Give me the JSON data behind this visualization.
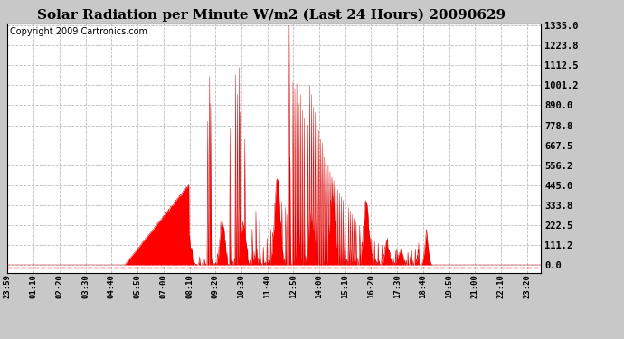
{
  "title": "Solar Radiation per Minute W/m2 (Last 24 Hours) 20090629",
  "copyright": "Copyright 2009 Cartronics.com",
  "yticks": [
    0.0,
    111.2,
    222.5,
    333.8,
    445.0,
    556.2,
    667.5,
    778.8,
    890.0,
    1001.2,
    1112.5,
    1223.8,
    1335.0
  ],
  "ymin": 0.0,
  "ymax": 1335.0,
  "fill_color": "#ff0000",
  "line_color": "#cc0000",
  "dashed_line_color": "#ff0000",
  "grid_color": "#bbbbbb",
  "background_color": "#ffffff",
  "outer_background": "#c8c8c8",
  "title_fontsize": 11,
  "copyright_fontsize": 7,
  "xtick_labels": [
    "23:59",
    "01:10",
    "02:20",
    "03:30",
    "04:40",
    "05:50",
    "07:00",
    "08:10",
    "09:20",
    "10:30",
    "11:40",
    "12:50",
    "14:00",
    "15:10",
    "16:20",
    "17:30",
    "18:40",
    "19:50",
    "21:00",
    "22:10",
    "23:20"
  ],
  "xtick_offsets": [
    0,
    71,
    141,
    211,
    281,
    351,
    421,
    491,
    561,
    631,
    701,
    771,
    841,
    911,
    981,
    1051,
    1121,
    1191,
    1261,
    1331,
    1401
  ]
}
